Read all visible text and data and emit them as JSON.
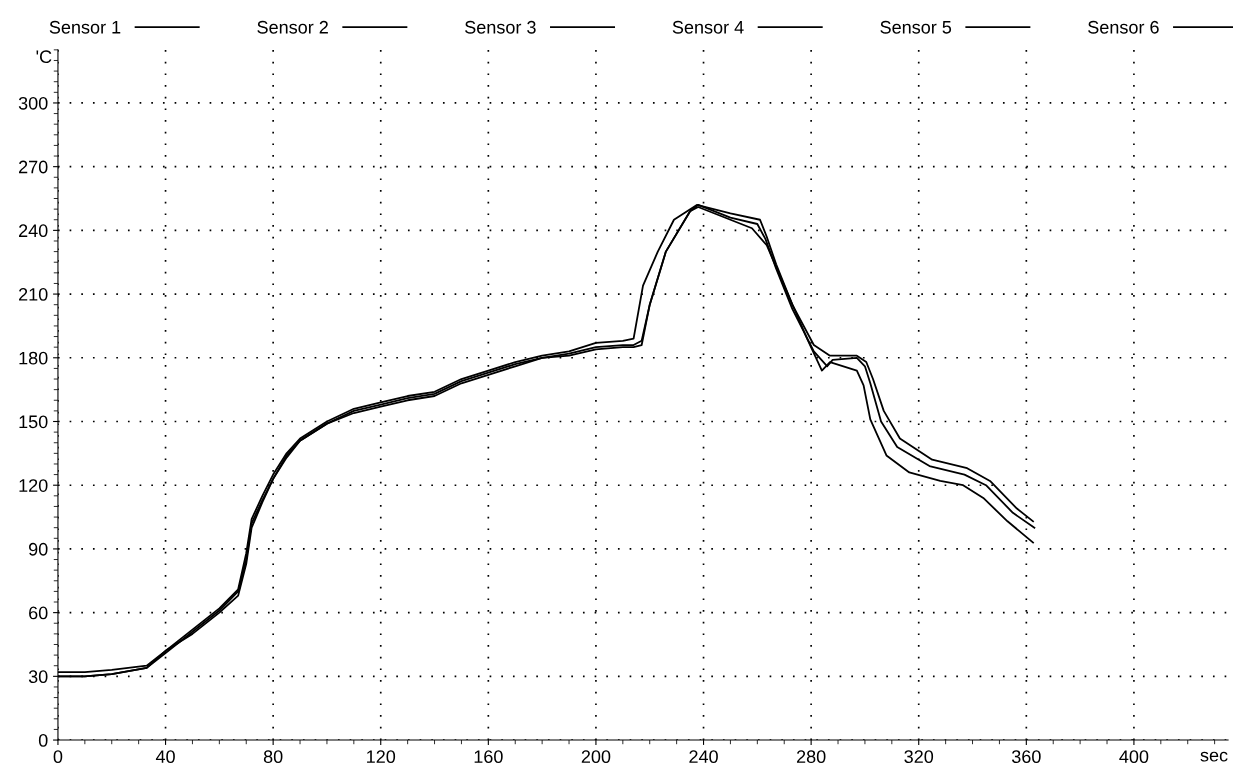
{
  "chart_data": {
    "type": "line",
    "xlabel": "sec",
    "ylabel": "'C",
    "xlim": [
      0,
      435
    ],
    "ylim": [
      0,
      325
    ],
    "xticks": [
      0,
      40,
      80,
      120,
      160,
      200,
      240,
      280,
      320,
      360,
      400
    ],
    "yticks": [
      0,
      30,
      60,
      90,
      120,
      150,
      180,
      210,
      240,
      270,
      300
    ],
    "grid": true,
    "legend": "top",
    "marker": "none",
    "line_style": "solid",
    "series": [
      {
        "name": "Sensor 1",
        "color": "#000000",
        "x": [
          0,
          10,
          20,
          33,
          40,
          50,
          60,
          67,
          70,
          72,
          76,
          80,
          85,
          90,
          100,
          110,
          120,
          130,
          140,
          150,
          160,
          170,
          180,
          190,
          200,
          210,
          214,
          217.5,
          223,
          229,
          237.5,
          250,
          261,
          263.5,
          267,
          273,
          281,
          287,
          297,
          300.5,
          303,
          307,
          313,
          325,
          338,
          346.5,
          356.5,
          362.5
        ],
        "values": [
          32,
          32,
          33,
          35,
          42,
          52,
          62,
          71,
          88,
          104,
          115,
          125,
          135,
          142,
          150,
          156,
          159,
          162,
          164,
          170,
          174,
          178,
          181,
          183,
          187,
          188,
          189,
          214,
          230,
          245,
          252,
          248,
          245,
          237,
          224,
          205,
          186,
          181,
          181,
          178,
          170,
          155,
          142,
          132,
          128,
          122,
          109,
          103
        ]
      },
      {
        "name": "Sensor 2",
        "color": "#000000",
        "x": [
          0,
          10,
          20,
          33,
          40,
          50,
          60,
          67,
          70,
          72,
          76,
          80,
          85,
          90,
          100,
          110,
          120,
          130,
          140,
          150,
          160,
          170,
          180,
          190,
          200,
          210,
          214,
          217,
          220,
          226,
          235,
          238,
          250,
          260,
          263,
          267,
          273,
          281,
          286,
          288,
          297,
          300,
          302,
          306,
          312,
          324,
          337,
          345,
          355,
          363
        ],
        "values": [
          30,
          30,
          31,
          34,
          41,
          51,
          61,
          70,
          85,
          102,
          113,
          123,
          133,
          141,
          149,
          155,
          158,
          161,
          163,
          169,
          173,
          177,
          180,
          182,
          185,
          186,
          186,
          188,
          205,
          230,
          249,
          252,
          246,
          243,
          236,
          222,
          203,
          183,
          176,
          179,
          180,
          176,
          168,
          150,
          138,
          129,
          125,
          120,
          107,
          100
        ]
      },
      {
        "name": "Sensor 3",
        "color": "#000000",
        "x": [
          0,
          10,
          20,
          33,
          40,
          50,
          60,
          67,
          70,
          72,
          76,
          80,
          85,
          90,
          100,
          110,
          120,
          130,
          140,
          150,
          160,
          170,
          180,
          190,
          200,
          210,
          214,
          217,
          220,
          226,
          235,
          238,
          258,
          263.5,
          271,
          278.5,
          284,
          287,
          297,
          299.5,
          302,
          308,
          316.5,
          328,
          336.5,
          344,
          353,
          362.5
        ],
        "values": [
          30,
          30,
          31,
          34,
          42,
          50,
          60,
          68,
          83,
          100,
          112,
          123,
          134,
          141,
          149,
          154,
          157,
          160,
          162,
          168,
          172,
          176,
          180,
          181,
          184,
          185,
          185,
          186,
          205,
          230,
          249,
          251,
          241,
          233,
          211,
          189,
          174,
          178,
          174,
          167,
          151,
          134,
          126,
          122,
          120,
          114,
          103,
          93
        ]
      },
      {
        "name": "Sensor 4",
        "color": "#000000"
      },
      {
        "name": "Sensor 5",
        "color": "#000000"
      },
      {
        "name": "Sensor 6",
        "color": "#000000"
      }
    ]
  }
}
